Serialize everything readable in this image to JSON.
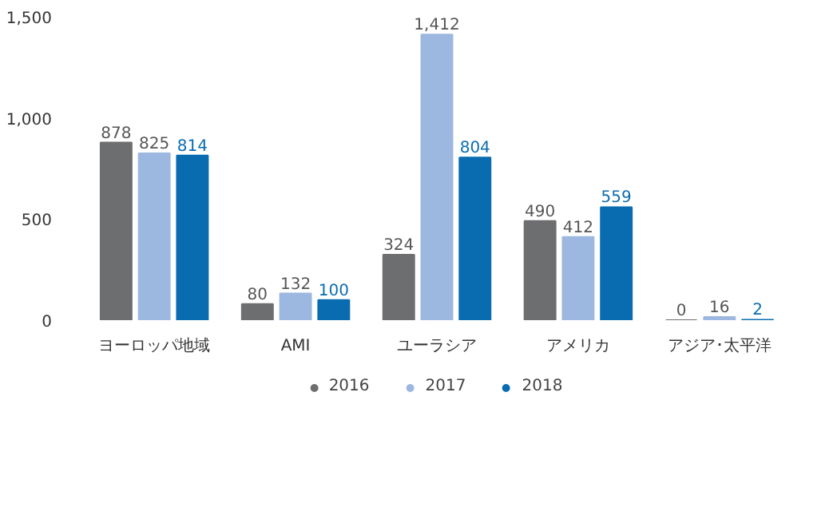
{
  "chart_data": {
    "type": "bar",
    "categories": [
      "ヨーロッパ地域",
      "AMI",
      "ユーラシア",
      "アメリカ",
      "アジア･太平洋"
    ],
    "series": [
      {
        "name": "2016",
        "color": "#6d6e70",
        "values": [
          878,
          80,
          324,
          490,
          0
        ],
        "value_labels": [
          "878",
          "80",
          "324",
          "490",
          "0"
        ]
      },
      {
        "name": "2017",
        "color": "#9db8e0",
        "values": [
          825,
          132,
          1412,
          412,
          16
        ],
        "value_labels": [
          "825",
          "132",
          "1,412",
          "412",
          "16"
        ]
      },
      {
        "name": "2018",
        "color": "#0a6cb0",
        "values": [
          814,
          100,
          804,
          559,
          2
        ],
        "value_labels": [
          "814",
          "100",
          "804",
          "559",
          "2"
        ]
      }
    ],
    "ylim": [
      0,
      1500
    ],
    "yticks": [
      0,
      500,
      {
        "value": 1000,
        "label": "1,000"
      },
      {
        "value": 1500,
        "label": "1,500"
      }
    ],
    "grid": false,
    "legend": "bottom"
  }
}
